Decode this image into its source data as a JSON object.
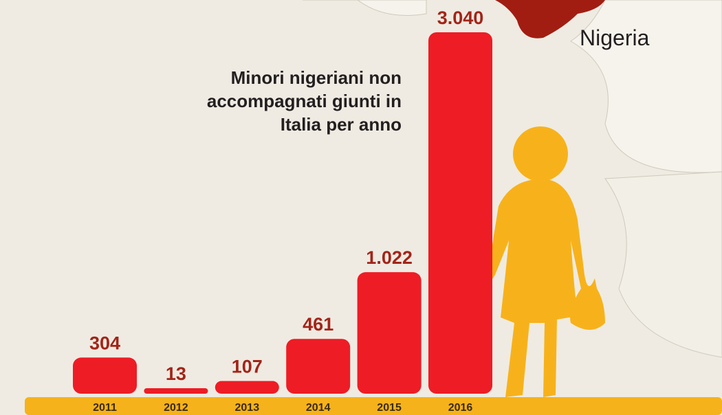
{
  "chart_data": {
    "type": "bar",
    "title": "Minori nigeriani non accompagnati giunti in Italia per anno",
    "annotation": "Nigeria",
    "categories": [
      "2011",
      "2012",
      "2013",
      "2014",
      "2015",
      "2016"
    ],
    "values": [
      304,
      13,
      107,
      461,
      1022,
      3040
    ],
    "value_labels": [
      "304",
      "13",
      "107",
      "461",
      "1.022",
      "3.040"
    ],
    "color": "#ee1c25"
  }
}
